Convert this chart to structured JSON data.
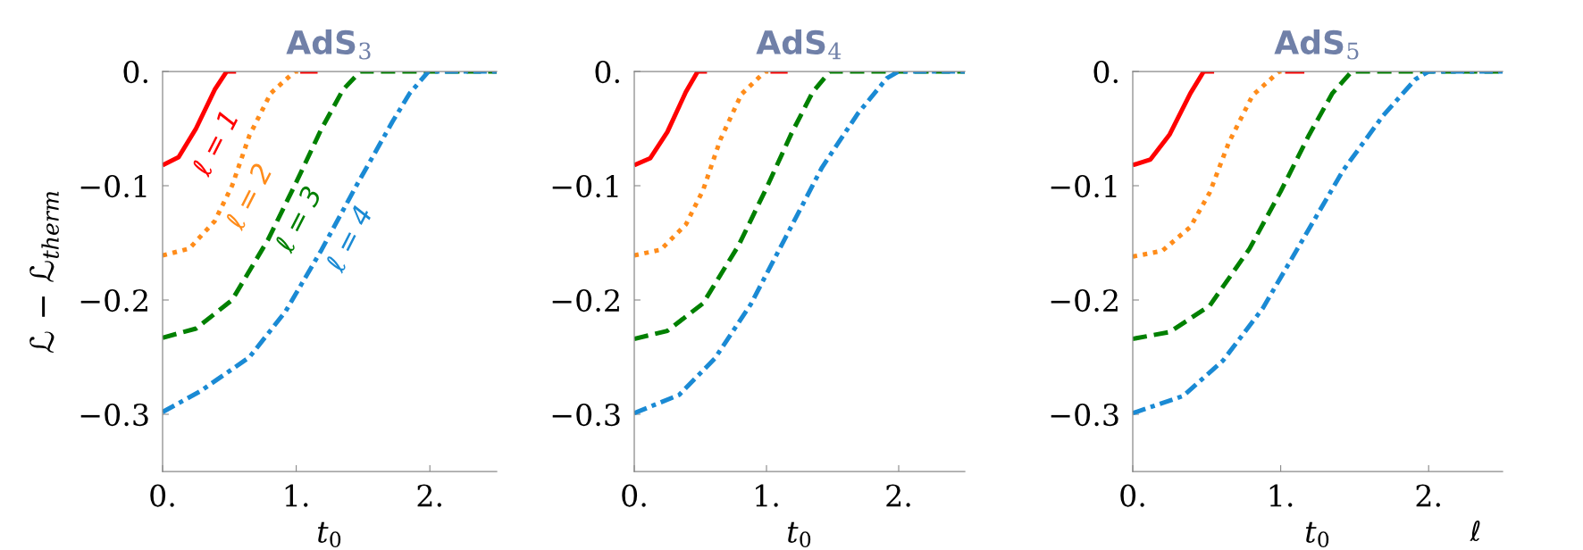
{
  "chart_data": [
    {
      "type": "line",
      "title": "AdS$_{3}$",
      "xlabel": "t$_{0}$",
      "ylabel": "ℒ − ℒ$_{therm}$",
      "xlim": [
        0,
        2.5
      ],
      "ylim": [
        -0.35,
        0
      ],
      "xticks": [
        {
          "value": 0,
          "label": "0."
        },
        {
          "value": 1,
          "label": "1."
        },
        {
          "value": 2,
          "label": "2."
        }
      ],
      "yticks": [
        {
          "value": 0,
          "label": "0."
        },
        {
          "value": -0.1,
          "label": "−0.1"
        },
        {
          "value": -0.2,
          "label": "−0.2"
        },
        {
          "value": -0.3,
          "label": "−0.3"
        }
      ],
      "grid": false,
      "legend": false,
      "series": [
        {
          "color": "#ff0000",
          "line_style": "solid",
          "x": [
            0,
            0.12,
            0.25,
            0.39,
            0.48,
            0.55,
            0.56,
            1.03,
            1.16
          ],
          "values": [
            -0.082,
            -0.075,
            -0.05,
            -0.016,
            0,
            0,
            null,
            0,
            0
          ]
        },
        {
          "color": "#ff8c1a",
          "line_style": "dotted",
          "x": [
            0,
            0.2,
            0.39,
            0.52,
            0.65,
            0.81,
            0.99,
            1.03
          ],
          "values": [
            -0.161,
            -0.155,
            -0.131,
            -0.1,
            -0.056,
            -0.019,
            0,
            0
          ]
        },
        {
          "color": "#008000",
          "line_style": "dashed",
          "x": [
            0,
            0.25,
            0.52,
            0.79,
            1.0,
            1.19,
            1.35,
            1.48,
            2.5
          ],
          "values": [
            -0.233,
            -0.225,
            -0.2,
            -0.147,
            -0.097,
            -0.05,
            -0.016,
            0,
            0
          ]
        },
        {
          "color": "#1a8ad4",
          "line_style": "dashdot",
          "x": [
            0,
            0.28,
            0.65,
            0.92,
            1.19,
            1.45,
            1.72,
            1.85,
            1.99,
            2.5
          ],
          "values": [
            -0.298,
            -0.28,
            -0.25,
            -0.21,
            -0.156,
            -0.1,
            -0.044,
            -0.019,
            0,
            0
          ]
        }
      ],
      "annotations": [
        "ℓ = 1",
        "ℓ = 2",
        "ℓ = 3",
        "ℓ = 4"
      ]
    },
    {
      "type": "line",
      "title": "AdS$_{4}$",
      "xlabel": "t$_{0}$",
      "xlim": [
        0,
        2.5
      ],
      "ylim": [
        -0.35,
        0
      ],
      "xticks": [
        {
          "value": 0,
          "label": "0."
        },
        {
          "value": 1,
          "label": "1."
        },
        {
          "value": 2,
          "label": "2."
        }
      ],
      "yticks": [
        {
          "value": 0,
          "label": "0."
        },
        {
          "value": -0.1,
          "label": "−0.1"
        },
        {
          "value": -0.2,
          "label": "−0.2"
        },
        {
          "value": -0.3,
          "label": "−0.3"
        }
      ],
      "grid": false,
      "legend": false,
      "series": [
        {
          "color": "#ff0000",
          "line_style": "solid",
          "x": [
            0,
            0.12,
            0.25,
            0.39,
            0.48,
            0.55,
            0.56,
            1.03,
            1.16
          ],
          "values": [
            -0.082,
            -0.076,
            -0.053,
            -0.018,
            0,
            0,
            null,
            0,
            0
          ]
        },
        {
          "color": "#ff8c1a",
          "line_style": "dotted",
          "x": [
            0,
            0.2,
            0.39,
            0.52,
            0.65,
            0.81,
            0.99,
            1.03
          ],
          "values": [
            -0.161,
            -0.156,
            -0.134,
            -0.104,
            -0.06,
            -0.02,
            0,
            0
          ]
        },
        {
          "color": "#008000",
          "line_style": "dashed",
          "x": [
            0,
            0.25,
            0.52,
            0.79,
            1.0,
            1.19,
            1.35,
            1.48,
            2.5
          ],
          "values": [
            -0.234,
            -0.227,
            -0.203,
            -0.152,
            -0.102,
            -0.054,
            -0.018,
            0,
            0
          ]
        },
        {
          "color": "#1a8ad4",
          "line_style": "dashdot",
          "x": [
            0,
            0.34,
            0.61,
            0.88,
            1.15,
            1.42,
            1.69,
            1.91,
            2.0,
            2.5
          ],
          "values": [
            -0.299,
            -0.283,
            -0.251,
            -0.204,
            -0.144,
            -0.084,
            -0.037,
            -0.006,
            0,
            0
          ]
        }
      ]
    },
    {
      "type": "line",
      "title": "AdS$_{5}$",
      "xlabel": "t$_{0}$",
      "xlim": [
        0,
        2.5
      ],
      "ylim": [
        -0.35,
        0
      ],
      "xticks": [
        {
          "value": 0,
          "label": "0."
        },
        {
          "value": 1,
          "label": "1."
        },
        {
          "value": 2,
          "label": "2."
        }
      ],
      "yticks": [
        {
          "value": 0,
          "label": "0."
        },
        {
          "value": -0.1,
          "label": "−0.1"
        },
        {
          "value": -0.2,
          "label": "−0.2"
        },
        {
          "value": -0.3,
          "label": "−0.3"
        }
      ],
      "grid": false,
      "legend": false,
      "series": [
        {
          "color": "#ff0000",
          "line_style": "solid",
          "x": [
            0,
            0.12,
            0.25,
            0.39,
            0.48,
            0.55,
            0.56,
            1.03,
            1.16
          ],
          "values": [
            -0.082,
            -0.077,
            -0.055,
            -0.019,
            0,
            0,
            null,
            0,
            0
          ]
        },
        {
          "color": "#ff8c1a",
          "line_style": "dotted",
          "x": [
            0,
            0.2,
            0.39,
            0.52,
            0.65,
            0.81,
            0.99,
            1.03
          ],
          "values": [
            -0.162,
            -0.157,
            -0.136,
            -0.106,
            -0.062,
            -0.021,
            0,
            0
          ]
        },
        {
          "color": "#008000",
          "line_style": "dashed",
          "x": [
            0,
            0.25,
            0.52,
            0.79,
            1.0,
            1.19,
            1.35,
            1.48,
            2.5
          ],
          "values": [
            -0.234,
            -0.228,
            -0.205,
            -0.155,
            -0.105,
            -0.056,
            -0.019,
            0,
            0
          ]
        },
        {
          "color": "#1a8ad4",
          "line_style": "dashdot",
          "x": [
            0,
            0.34,
            0.61,
            0.88,
            1.15,
            1.42,
            1.69,
            1.91,
            2.0,
            2.5
          ],
          "values": [
            -0.299,
            -0.284,
            -0.253,
            -0.207,
            -0.147,
            -0.087,
            -0.039,
            -0.007,
            0,
            0
          ]
        }
      ],
      "annotations": [
        "ℓ"
      ]
    }
  ]
}
